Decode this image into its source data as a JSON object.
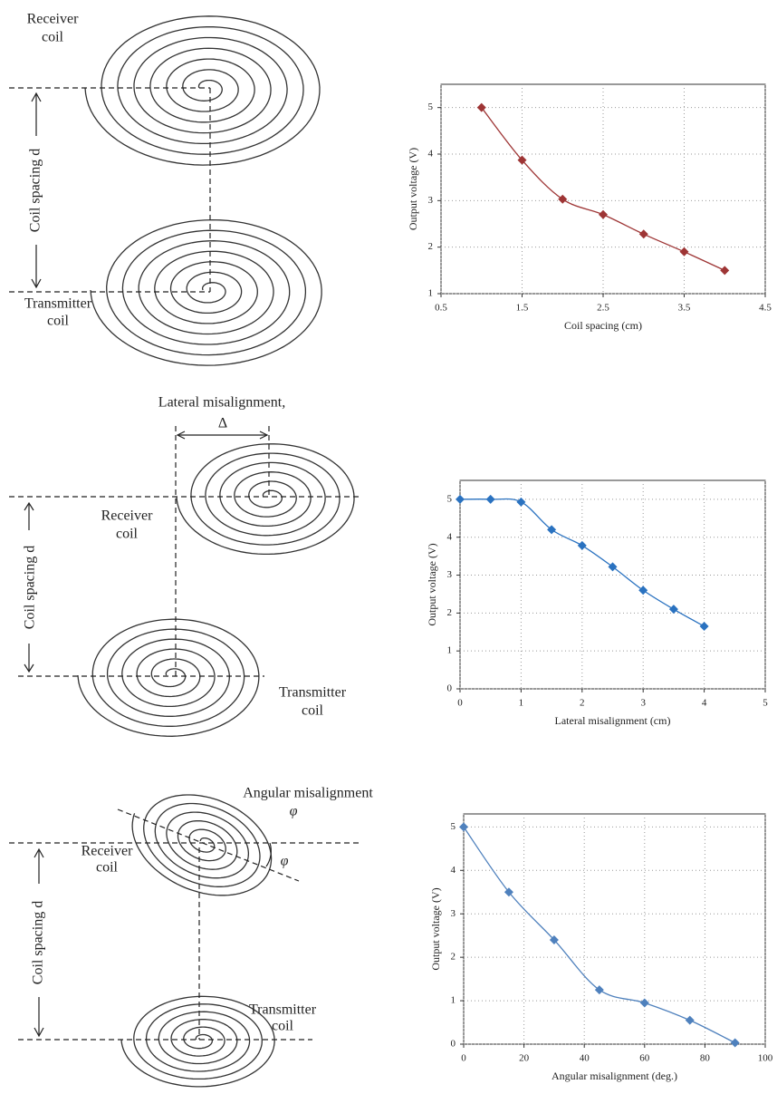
{
  "chart_data": [
    {
      "type": "line",
      "title": null,
      "x_label": "Coil spacing (cm)",
      "y_label": "Output voltage (V)",
      "xlim": [
        0.5,
        4.5
      ],
      "xticks": [
        0.5,
        1.5,
        2.5,
        3.5,
        4.5
      ],
      "ylim": [
        1,
        5.5
      ],
      "yticks": [
        1,
        2,
        3,
        4,
        5
      ],
      "grid": true,
      "series": [
        {
          "name": null,
          "color": "#9e3535",
          "x": [
            1,
            1.5,
            2,
            2.5,
            3,
            3.5,
            4
          ],
          "values": [
            5,
            3.87,
            3.03,
            2.7,
            2.28,
            1.9,
            1.5
          ]
        }
      ]
    },
    {
      "type": "line",
      "title": null,
      "x_label": "Lateral misalignment (cm)",
      "y_label": "Output voltage (V)",
      "xlim": [
        0,
        5
      ],
      "xticks": [
        0,
        1,
        2,
        3,
        4,
        5
      ],
      "ylim": [
        0,
        5.5
      ],
      "yticks": [
        0,
        1,
        2,
        3,
        4,
        5
      ],
      "grid": true,
      "series": [
        {
          "name": null,
          "color": "#2a72c0",
          "x": [
            0,
            0.5,
            1,
            1.5,
            2,
            2.5,
            3,
            3.5,
            4
          ],
          "values": [
            5,
            5,
            4.93,
            4.2,
            3.78,
            3.22,
            2.6,
            2.1,
            1.65
          ]
        }
      ]
    },
    {
      "type": "line",
      "title": null,
      "x_label": "Angular misalignment (deg.)",
      "y_label": "Output voltage (V)",
      "xlim": [
        0,
        100
      ],
      "xticks": [
        0,
        20,
        40,
        60,
        80,
        100
      ],
      "ylim": [
        0,
        5.3
      ],
      "yticks": [
        0,
        1,
        2,
        3,
        4,
        5
      ],
      "grid": true,
      "series": [
        {
          "name": null,
          "color": "#4f81bd",
          "x": [
            0,
            15,
            30,
            45,
            60,
            75,
            90
          ],
          "values": [
            5,
            3.5,
            2.4,
            1.25,
            0.95,
            0.55,
            0.03
          ]
        }
      ]
    }
  ],
  "diagrams": [
    {
      "receiver": [
        "Receiver",
        "coil"
      ],
      "transmitter": [
        "Transmitter",
        "coil"
      ],
      "spacing": "Coil spacing d"
    },
    {
      "title": "Lateral misalignment,",
      "delta": "Δ",
      "receiver": [
        "Receiver",
        "coil"
      ],
      "transmitter": [
        "Transmitter",
        "coil"
      ],
      "spacing": "Coil spacing d"
    },
    {
      "title": "Angular misalignment",
      "phi": "φ",
      "phi_angle": "φ",
      "receiver": [
        "Receiver",
        "coil"
      ],
      "transmitter": [
        "Transmitter",
        "coil"
      ],
      "spacing": "Coil spacing d"
    }
  ]
}
